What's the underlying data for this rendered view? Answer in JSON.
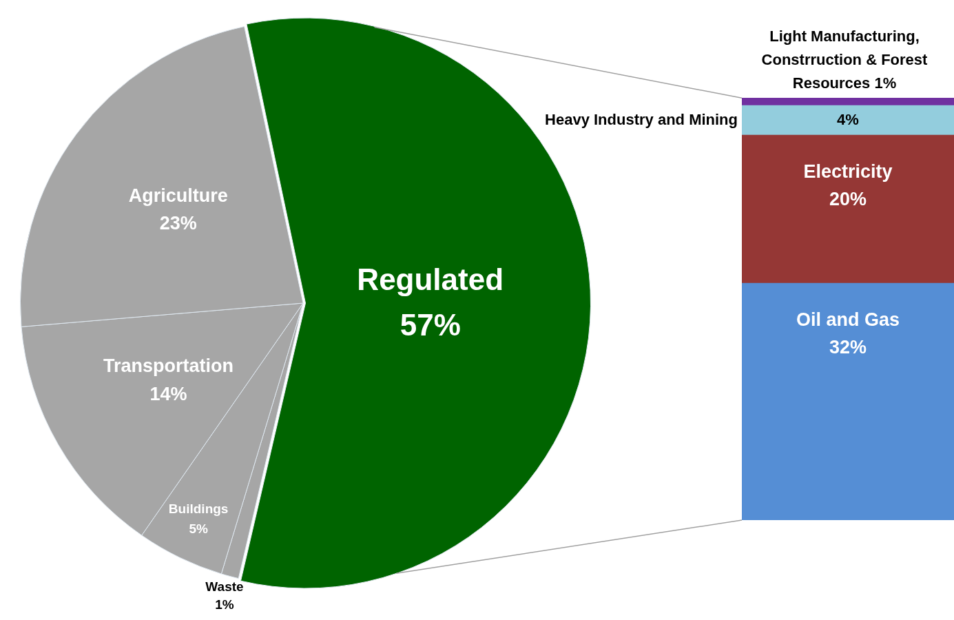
{
  "chart_data": [
    {
      "type": "pie",
      "categories": [
        "Regulated",
        "Waste",
        "Buildings",
        "Transportation",
        "Agriculture"
      ],
      "values": [
        57,
        1,
        5,
        14,
        23
      ],
      "value_labels": [
        "57%",
        "1%",
        "5%",
        "14%",
        "23%"
      ],
      "colors": [
        "#006400",
        "#a6a6a6",
        "#a6a6a6",
        "#a6a6a6",
        "#a6a6a6"
      ],
      "legend": false
    },
    {
      "type": "bar",
      "stacked": true,
      "categories": [
        null
      ],
      "legend": false,
      "series": [
        {
          "name": "Oil and Gas",
          "color": "#558ed5",
          "values": [
            32
          ],
          "value_labels": [
            "32%"
          ]
        },
        {
          "name": "Electricity",
          "color": "#953735",
          "values": [
            20
          ],
          "value_labels": [
            "20%"
          ]
        },
        {
          "name": "Heavy Industry and Mining",
          "color": "#93cddd",
          "values": [
            4
          ],
          "value_labels": [
            "4%"
          ]
        },
        {
          "name": "Light Manufacturing, Constrruction & Forest Resources",
          "color": "#7030a0",
          "values": [
            1
          ],
          "value_labels": [
            "1%"
          ]
        }
      ]
    }
  ]
}
